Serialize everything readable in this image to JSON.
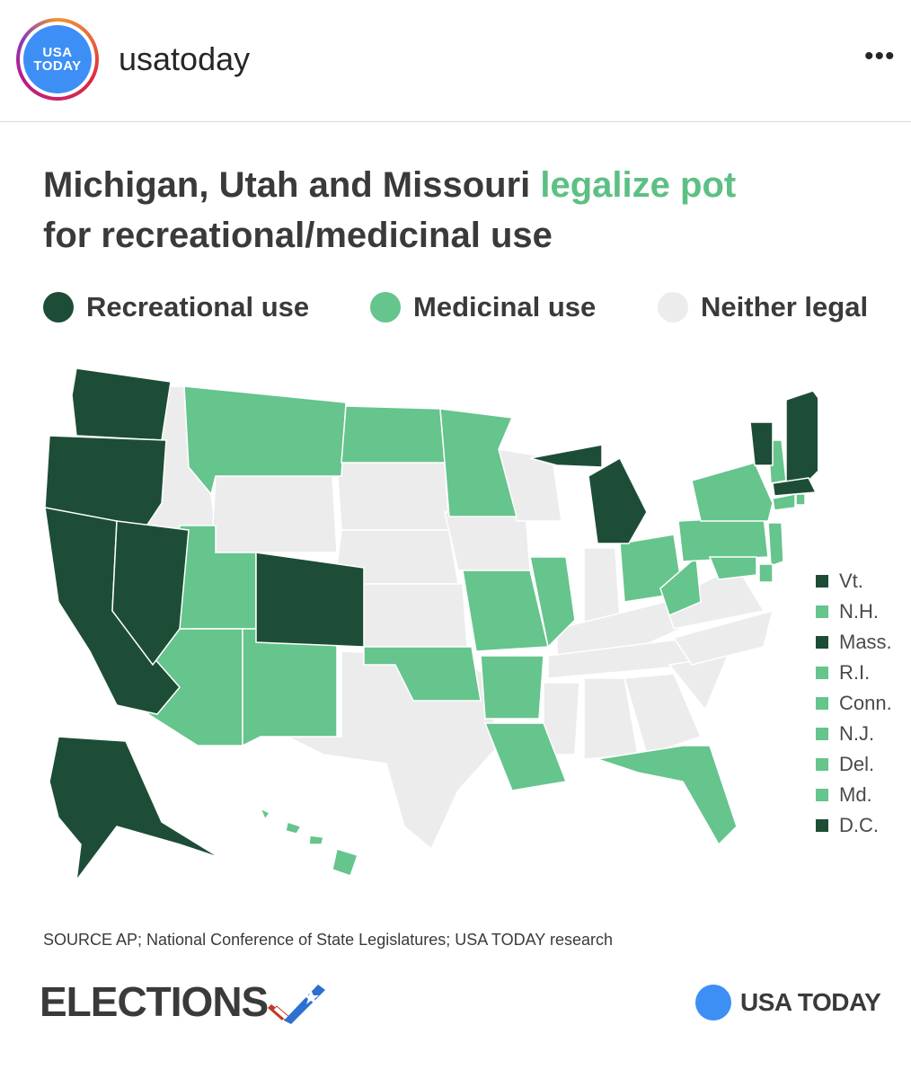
{
  "header": {
    "avatar_line1": "USA",
    "avatar_line2": "TODAY",
    "username": "usatoday",
    "more_glyph": "•••"
  },
  "post": {
    "title_part1": "Michigan, Utah and Missouri ",
    "title_highlight": "legalize pot",
    "title_part2": "for recreational/medicinal use",
    "legend": [
      {
        "label": "Recreational use",
        "color": "#1d4d36"
      },
      {
        "label": "Medicinal use",
        "color": "#66c48d"
      },
      {
        "label": "Neither legal",
        "color": "#ececec"
      }
    ],
    "small_states": [
      {
        "label": "Vt.",
        "status": "recreational"
      },
      {
        "label": "N.H.",
        "status": "medicinal"
      },
      {
        "label": "Mass.",
        "status": "recreational"
      },
      {
        "label": "R.I.",
        "status": "medicinal"
      },
      {
        "label": "Conn.",
        "status": "medicinal"
      },
      {
        "label": "N.J.",
        "status": "medicinal"
      },
      {
        "label": "Del.",
        "status": "medicinal"
      },
      {
        "label": "Md.",
        "status": "medicinal"
      },
      {
        "label": "D.C.",
        "status": "recreational"
      }
    ],
    "states_status": {
      "recreational": [
        "Washington",
        "Oregon",
        "California",
        "Nevada",
        "Colorado",
        "Alaska",
        "Michigan",
        "Maine",
        "Vermont",
        "Massachusetts",
        "D.C."
      ],
      "medicinal": [
        "Montana",
        "Minnesota",
        "Utah",
        "Arizona",
        "New Mexico",
        "Oklahoma",
        "Missouri",
        "Arkansas",
        "Louisiana",
        "Illinois",
        "Ohio",
        "West Virginia",
        "Pennsylvania",
        "New York",
        "New Hampshire",
        "Connecticut",
        "Rhode Island",
        "New Jersey",
        "Delaware",
        "Maryland",
        "Florida",
        "North Dakota",
        "Hawaii"
      ],
      "neither": [
        "Idaho",
        "Wyoming",
        "South Dakota",
        "Nebraska",
        "Kansas",
        "Texas",
        "Iowa",
        "Wisconsin",
        "Indiana",
        "Kentucky",
        "Tennessee",
        "Mississippi",
        "Alabama",
        "Georgia",
        "South Carolina",
        "North Carolina",
        "Virginia"
      ]
    },
    "source": "SOURCE AP; National Conference of State Legislatures; USA TODAY research",
    "elections_label": "ELECTIONS",
    "brand_label": "USA TODAY"
  },
  "colors": {
    "recreational": "#1d4d36",
    "medicinal": "#66c48d",
    "neither": "#ececec",
    "highlight": "#5cc084",
    "brand_blue": "#3d8ff5"
  }
}
